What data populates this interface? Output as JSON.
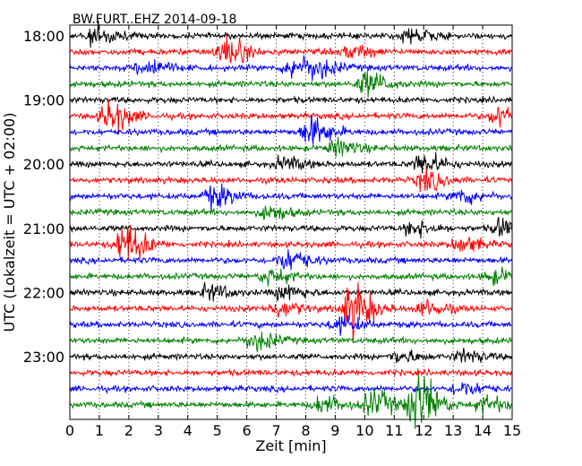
{
  "chart_data": {
    "type": "line",
    "title": "BW.FURT..EHZ 2014-09-18",
    "xlabel": "Zeit  [min]",
    "ylabel": "UTC (Lokalzeit = UTC + 02:00)",
    "xlim": [
      0,
      15
    ],
    "x_ticks": [
      "0",
      "1",
      "2",
      "3",
      "4",
      "5",
      "6",
      "7",
      "8",
      "9",
      "10",
      "11",
      "12",
      "13",
      "14",
      "15"
    ],
    "y_ticks": [
      "18:00",
      "19:00",
      "20:00",
      "21:00",
      "22:00",
      "23:00"
    ],
    "rows_per_hour": 4,
    "row_minutes": 15,
    "grid_x": true,
    "trace_colors": [
      "#000000",
      "#ff0000",
      "#0000ff",
      "#008000"
    ],
    "rows": [
      {
        "start": "18:00",
        "events": [
          {
            "t": 0.8,
            "amp": 1.6
          },
          {
            "t": 11.5,
            "amp": 1.3
          }
        ]
      },
      {
        "start": "18:15",
        "events": [
          {
            "t": 5.2,
            "amp": 2.6
          },
          {
            "t": 9.5,
            "amp": 1.1
          }
        ]
      },
      {
        "start": "18:30",
        "events": [
          {
            "t": 2.5,
            "amp": 1.6
          },
          {
            "t": 7.5,
            "amp": 1.8
          },
          {
            "t": 8.3,
            "amp": 1.3
          }
        ]
      },
      {
        "start": "18:45",
        "events": [
          {
            "t": 10.0,
            "amp": 2.0
          }
        ]
      },
      {
        "start": "19:00",
        "events": []
      },
      {
        "start": "19:15",
        "events": [
          {
            "t": 1.3,
            "amp": 2.6
          },
          {
            "t": 14.5,
            "amp": 1.8
          }
        ]
      },
      {
        "start": "19:30",
        "events": [
          {
            "t": 8.1,
            "amp": 2.4
          }
        ]
      },
      {
        "start": "19:45",
        "events": [
          {
            "t": 9.0,
            "amp": 1.3
          }
        ]
      },
      {
        "start": "20:00",
        "events": [
          {
            "t": 11.9,
            "amp": 1.8
          },
          {
            "t": 7.2,
            "amp": 1.0
          }
        ]
      },
      {
        "start": "20:15",
        "events": [
          {
            "t": 12.0,
            "amp": 1.6
          }
        ]
      },
      {
        "start": "20:30",
        "events": [
          {
            "t": 4.8,
            "amp": 1.8
          },
          {
            "t": 13.2,
            "amp": 1.3
          }
        ]
      },
      {
        "start": "20:45",
        "events": [
          {
            "t": 6.7,
            "amp": 1.2
          }
        ]
      },
      {
        "start": "21:00",
        "events": [
          {
            "t": 11.6,
            "amp": 1.2
          },
          {
            "t": 14.6,
            "amp": 1.6
          }
        ]
      },
      {
        "start": "21:15",
        "events": [
          {
            "t": 1.8,
            "amp": 3.4
          },
          {
            "t": 13.2,
            "amp": 1.3
          }
        ]
      },
      {
        "start": "21:30",
        "events": [
          {
            "t": 7.3,
            "amp": 1.8
          }
        ]
      },
      {
        "start": "21:45",
        "events": [
          {
            "t": 6.7,
            "amp": 1.3
          },
          {
            "t": 14.3,
            "amp": 1.1
          }
        ]
      },
      {
        "start": "22:00",
        "events": [
          {
            "t": 4.7,
            "amp": 1.2
          },
          {
            "t": 7.2,
            "amp": 1.2
          }
        ]
      },
      {
        "start": "22:15",
        "events": [
          {
            "t": 9.5,
            "amp": 4.2
          },
          {
            "t": 7.0,
            "amp": 1.3
          },
          {
            "t": 12.0,
            "amp": 1.3
          }
        ]
      },
      {
        "start": "22:30",
        "events": [
          {
            "t": 9.1,
            "amp": 1.3
          }
        ]
      },
      {
        "start": "22:45",
        "events": [
          {
            "t": 6.2,
            "amp": 1.6
          }
        ]
      },
      {
        "start": "23:00",
        "events": [
          {
            "t": 11.1,
            "amp": 1.0
          },
          {
            "t": 13.3,
            "amp": 1.0
          }
        ]
      },
      {
        "start": "23:15",
        "events": []
      },
      {
        "start": "23:30",
        "events": [
          {
            "t": 13.2,
            "amp": 1.2
          }
        ]
      },
      {
        "start": "23:45",
        "events": [
          {
            "t": 11.7,
            "amp": 5.2
          },
          {
            "t": 10.2,
            "amp": 2.2
          },
          {
            "t": 8.5,
            "amp": 1.4
          },
          {
            "t": 14.0,
            "amp": 1.3
          }
        ]
      }
    ]
  }
}
